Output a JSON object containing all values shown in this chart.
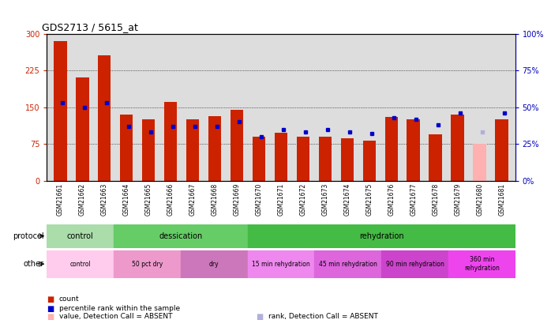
{
  "title": "GDS2713 / 5615_at",
  "samples": [
    "GSM21661",
    "GSM21662",
    "GSM21663",
    "GSM21664",
    "GSM21665",
    "GSM21666",
    "GSM21667",
    "GSM21668",
    "GSM21669",
    "GSM21670",
    "GSM21671",
    "GSM21672",
    "GSM21673",
    "GSM21674",
    "GSM21675",
    "GSM21676",
    "GSM21677",
    "GSM21678",
    "GSM21679",
    "GSM21680",
    "GSM21681"
  ],
  "count_values": [
    285,
    210,
    255,
    135,
    125,
    160,
    125,
    132,
    145,
    90,
    98,
    90,
    90,
    87,
    82,
    130,
    125,
    95,
    135,
    76,
    125
  ],
  "rank_values": [
    53,
    50,
    53,
    37,
    33,
    37,
    37,
    37,
    40,
    30,
    35,
    33,
    35,
    33,
    32,
    43,
    42,
    38,
    46,
    33,
    46
  ],
  "absent_count_idx": 19,
  "absent_rank_idx": 19,
  "ylim_left": [
    0,
    300
  ],
  "ylim_right": [
    0,
    100
  ],
  "yticks_left": [
    0,
    75,
    150,
    225,
    300
  ],
  "yticks_right": [
    0,
    25,
    50,
    75,
    100
  ],
  "ytick_labels_left": [
    "0",
    "75",
    "150",
    "225",
    "300"
  ],
  "ytick_labels_right": [
    "0%",
    "25%",
    "50%",
    "75%",
    "100%"
  ],
  "bar_color": "#cc2200",
  "bar_color_absent": "#ffb0b0",
  "rank_color": "#0000cc",
  "rank_color_absent": "#b0b0dd",
  "protocol_groups": [
    {
      "label": "control",
      "start": 0,
      "end": 3,
      "color": "#aaddaa"
    },
    {
      "label": "dessication",
      "start": 3,
      "end": 9,
      "color": "#66cc66"
    },
    {
      "label": "rehydration",
      "start": 9,
      "end": 21,
      "color": "#44bb44"
    }
  ],
  "other_groups": [
    {
      "label": "control",
      "start": 0,
      "end": 3,
      "color": "#ffccee"
    },
    {
      "label": "50 pct dry",
      "start": 3,
      "end": 6,
      "color": "#ee99cc"
    },
    {
      "label": "dry",
      "start": 6,
      "end": 9,
      "color": "#cc77bb"
    },
    {
      "label": "15 min rehydration",
      "start": 9,
      "end": 12,
      "color": "#ee88ee"
    },
    {
      "label": "45 min rehydration",
      "start": 12,
      "end": 15,
      "color": "#dd66dd"
    },
    {
      "label": "90 min rehydration",
      "start": 15,
      "end": 18,
      "color": "#cc44cc"
    },
    {
      "label": "360 min\nrehydration",
      "start": 18,
      "end": 21,
      "color": "#ee44ee"
    }
  ],
  "legend_items": [
    {
      "label": "count",
      "color": "#cc2200"
    },
    {
      "label": "percentile rank within the sample",
      "color": "#0000cc"
    },
    {
      "label": "value, Detection Call = ABSENT",
      "color": "#ffb0b0"
    },
    {
      "label": "rank, Detection Call = ABSENT",
      "color": "#b0b0dd"
    }
  ],
  "grid_color": "black",
  "bg_color": "#dddddd",
  "left_axis_color": "#cc2200",
  "right_axis_color": "#0000bb"
}
